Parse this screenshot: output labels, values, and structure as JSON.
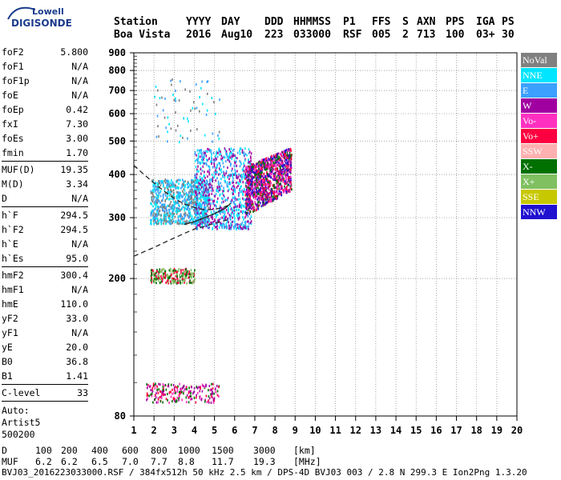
{
  "logo": {
    "line1": "Lowell",
    "line2": "DIGISONDE"
  },
  "header": {
    "labels": [
      "Station",
      "YYYY",
      "DAY",
      "DDD",
      "HHMMSS",
      "P1",
      "FFS",
      "S",
      "AXN",
      "PPS",
      "IGA",
      "PS"
    ],
    "values": [
      "Boa Vista",
      "2016",
      "Aug10",
      "223",
      "033000",
      "RSF",
      "005",
      "2",
      "713",
      "100",
      "03+",
      "30"
    ]
  },
  "params": {
    "group1": [
      {
        "name": "foF2",
        "value": "5.800"
      },
      {
        "name": "foF1",
        "value": "N/A"
      },
      {
        "name": "foF1p",
        "value": "N/A"
      },
      {
        "name": "foE",
        "value": "N/A"
      },
      {
        "name": "foEp",
        "value": "0.42"
      },
      {
        "name": "fxI",
        "value": "7.30"
      },
      {
        "name": "foEs",
        "value": "3.00"
      },
      {
        "name": "fmin",
        "value": "1.70"
      }
    ],
    "group2": [
      {
        "name": "MUF(D)",
        "value": "19.35"
      },
      {
        "name": "M(D)",
        "value": "3.34"
      },
      {
        "name": "D",
        "value": "N/A"
      }
    ],
    "group3": [
      {
        "name": "h`F",
        "value": "294.5"
      },
      {
        "name": "h`F2",
        "value": "294.5"
      },
      {
        "name": "h`E",
        "value": "N/A"
      },
      {
        "name": "h`Es",
        "value": "95.0"
      }
    ],
    "group4": [
      {
        "name": "hmF2",
        "value": "300.4"
      },
      {
        "name": "hmF1",
        "value": "N/A"
      },
      {
        "name": "hmE",
        "value": "110.0"
      },
      {
        "name": "yF2",
        "value": "33.0"
      },
      {
        "name": "yF1",
        "value": "N/A"
      },
      {
        "name": "yE",
        "value": "20.0"
      },
      {
        "name": "B0",
        "value": "36.8"
      },
      {
        "name": "B1",
        "value": "1.41"
      }
    ],
    "group5": [
      {
        "name": "C-level",
        "value": "33"
      }
    ],
    "auto_lines": [
      "Auto:",
      "Artist5",
      "500200"
    ]
  },
  "legend": [
    {
      "label": "NoVal",
      "color": "#808080"
    },
    {
      "label": "NNE",
      "color": "#00e5ff"
    },
    {
      "label": "E",
      "color": "#3ca0ff"
    },
    {
      "label": "W",
      "color": "#a000a0"
    },
    {
      "label": "Vo-",
      "color": "#ff30c0"
    },
    {
      "label": "Vo+",
      "color": "#ff0040"
    },
    {
      "label": "SSW",
      "color": "#ffb0b0"
    },
    {
      "label": "X-",
      "color": "#007000"
    },
    {
      "label": "X+",
      "color": "#80c060"
    },
    {
      "label": "SSE",
      "color": "#c8c800"
    },
    {
      "label": "NNW",
      "color": "#2010d0"
    }
  ],
  "footer": {
    "d_label": "D",
    "d_values": [
      "100",
      "200",
      "400",
      "600",
      "800",
      "1000",
      "1500",
      "3000",
      "[km]"
    ],
    "muf_label": "MUF",
    "muf_values": [
      "6.2",
      "6.2",
      "6.5",
      "7.0",
      "7.7",
      "8.8",
      "11.7",
      "19.3",
      "[MHz]"
    ],
    "info": "BVJ03_2016223033000.RSF / 384fx512h 50 kHz 2.5 km / DPS-4D BVJ03 003 / 2.8 N 299.3 E Ion2Png 1.3.20"
  },
  "chart_data": {
    "type": "scatter",
    "title": "",
    "xlabel": "",
    "ylabel": "",
    "xlim": [
      1,
      20
    ],
    "ylim": [
      80,
      900
    ],
    "x_ticks": [
      1,
      2,
      3,
      4,
      5,
      6,
      7,
      8,
      9,
      10,
      11,
      12,
      13,
      14,
      15,
      16,
      17,
      18,
      19,
      20
    ],
    "y_ticks": [
      80,
      200,
      300,
      400,
      500,
      600,
      700,
      800,
      900
    ],
    "y_scale": "log",
    "grid": true,
    "traces": [
      {
        "name": "virtual-height-trace",
        "style": "dashed",
        "points": [
          [
            1.0,
            425
          ],
          [
            1.5,
            400
          ],
          [
            2.0,
            378
          ],
          [
            2.5,
            358
          ],
          [
            3.0,
            341
          ],
          [
            3.5,
            329
          ],
          [
            4.0,
            321
          ],
          [
            4.5,
            316
          ],
          [
            5.0,
            317
          ],
          [
            5.5,
            322
          ],
          [
            5.8,
            328
          ]
        ]
      },
      {
        "name": "virtual-height-trace",
        "style": "dashed",
        "points": [
          [
            1.0,
            232
          ],
          [
            1.5,
            239
          ],
          [
            2.0,
            246
          ],
          [
            2.5,
            254
          ],
          [
            3.0,
            262
          ],
          [
            3.5,
            270
          ],
          [
            4.0,
            278
          ],
          [
            4.5,
            283
          ],
          [
            5.0,
            289
          ],
          [
            5.5,
            294
          ],
          [
            5.8,
            298
          ]
        ]
      },
      {
        "name": "profile",
        "style": "solid",
        "points": [
          [
            3.5,
            287
          ],
          [
            4.0,
            292
          ],
          [
            4.5,
            300
          ],
          [
            5.0,
            308
          ],
          [
            5.5,
            318
          ],
          [
            5.8,
            330
          ]
        ]
      }
    ],
    "echo_regions": [
      {
        "region": "F-diffuse",
        "freq_range": [
          1.8,
          4.7
        ],
        "height_range": [
          290,
          390
        ],
        "dominant": [
          "NNE",
          "E",
          "NoVal"
        ]
      },
      {
        "region": "F-diffuse",
        "freq_range": [
          4.0,
          6.8
        ],
        "height_range": [
          280,
          480
        ],
        "dominant": [
          "NNE",
          "E",
          "W"
        ]
      },
      {
        "region": "F-trace",
        "freq_range": [
          6.5,
          8.8
        ],
        "height_range": [
          330,
          520
        ],
        "dominant": [
          "W",
          "Vo-",
          "Vo+",
          "NNW",
          "X-"
        ]
      },
      {
        "region": "Es-200",
        "freq_range": [
          1.8,
          4.0
        ],
        "height_range": [
          195,
          215
        ],
        "dominant": [
          "X-",
          "Vo+",
          "X+"
        ]
      },
      {
        "region": "Es-95",
        "freq_range": [
          1.6,
          5.2
        ],
        "height_range": [
          88,
          100
        ],
        "dominant": [
          "Vo+",
          "W",
          "Vo-",
          "X-"
        ]
      },
      {
        "region": "spread-upper",
        "freq_range": [
          2.0,
          5.5
        ],
        "height_range": [
          500,
          760
        ],
        "dominant": [
          "NNE",
          "E",
          "NoVal"
        ]
      }
    ]
  }
}
